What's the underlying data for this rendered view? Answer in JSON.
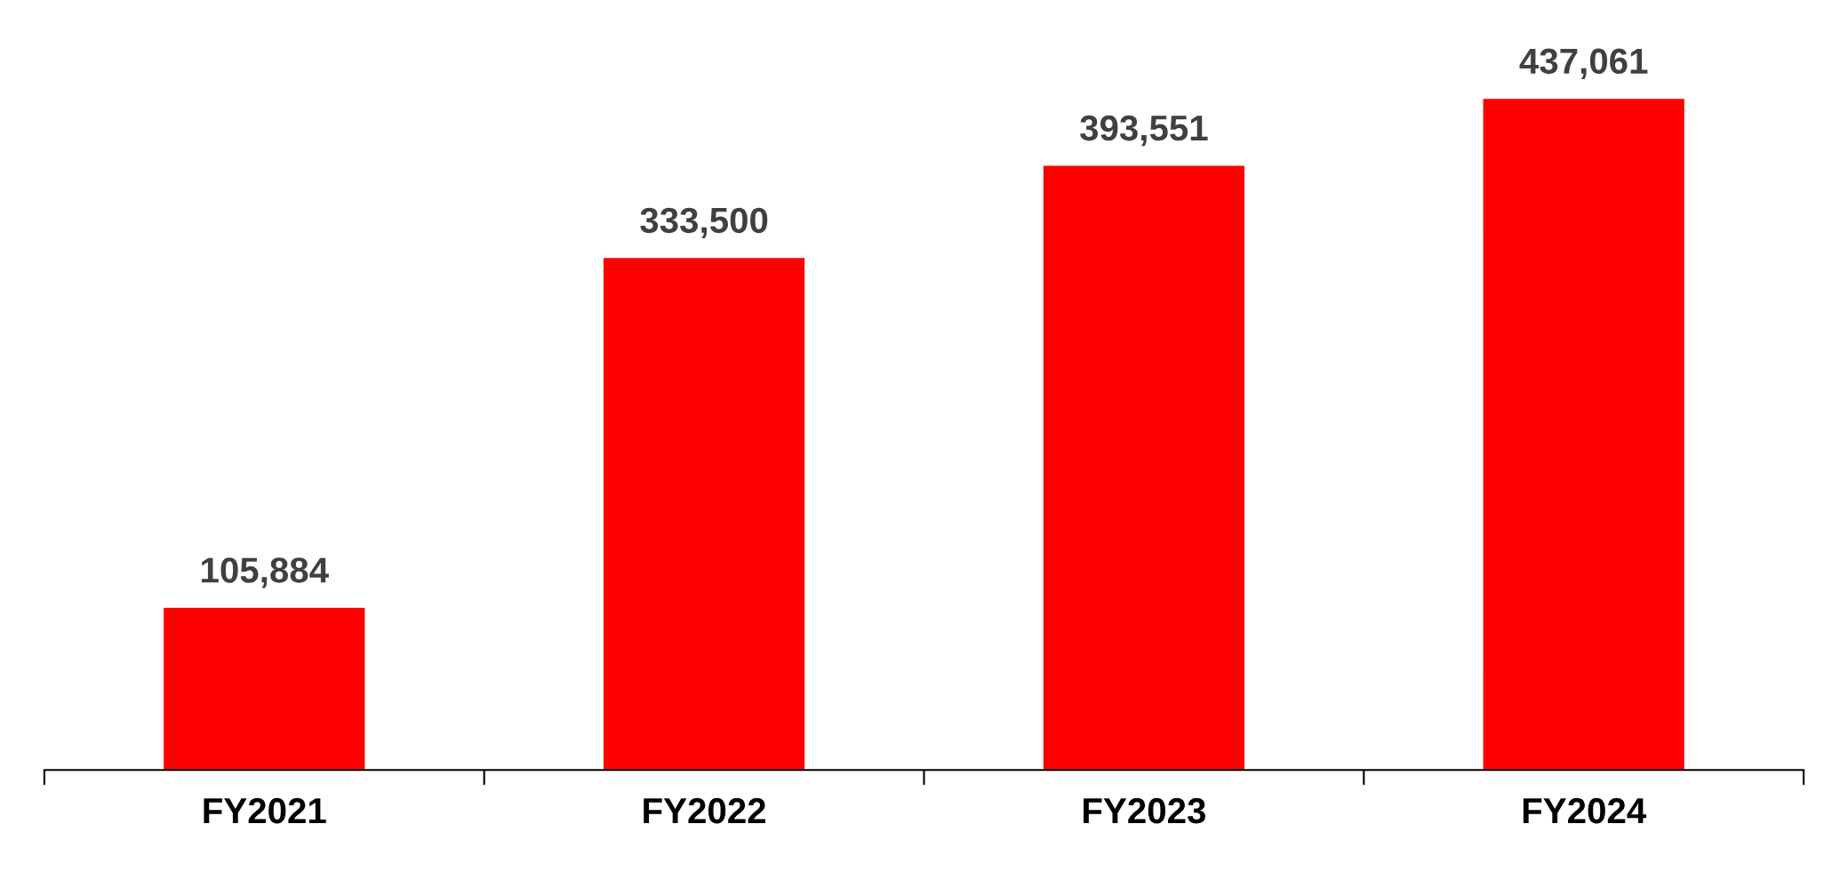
{
  "chart_data": {
    "type": "bar",
    "categories": [
      "FY2021",
      "FY2022",
      "FY2023",
      "FY2024"
    ],
    "values": [
      105884,
      333500,
      393551,
      437061
    ],
    "value_labels": [
      "105,884",
      "333,500",
      "393,551",
      "437,061"
    ],
    "color": "#ff0000",
    "grid": false,
    "legend": false
  }
}
